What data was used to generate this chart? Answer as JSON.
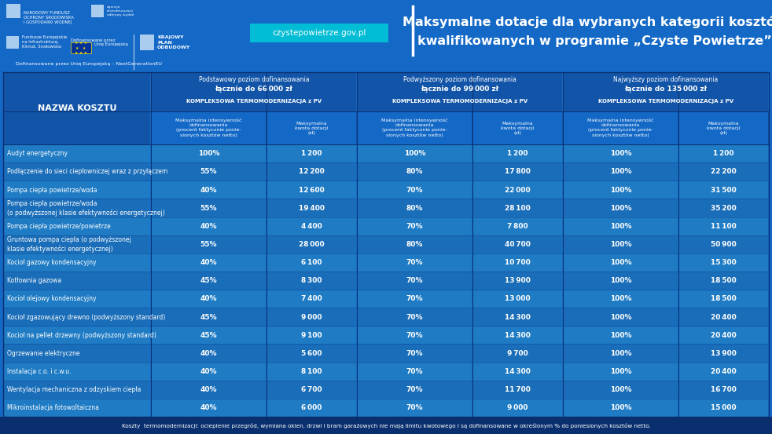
{
  "title_line1": "Maksymalne dotacje dla wybranych kategorii kosztów",
  "title_line2": "kwalifikowanych w programie „Czyste Powietrze”",
  "website": "czystepowietrze.gov.pl",
  "bg_color": "#1469C7",
  "dark_blue": "#0E3F8A",
  "medium_blue": "#1255A8",
  "light_blue": "#1E7BC4",
  "teal": "#00BCD4",
  "footer_bg": "#0A2F6E",
  "row_even": "#1E7BC4",
  "row_odd": "#1A6DB8",
  "header_bg": "#0E3F8A",
  "subheader_bg": "#1255A8",
  "section_bg": "#1469C7",
  "col_header1_line1": "Podstawowy poziom dofinansowania",
  "col_header1_bold": "łącznie do 66 000 zł",
  "col_header1_line3": "KOMPLEKSOWA TERMOMODERNIZACJA z PV",
  "col_header2_line1": "Podwyższony poziom dofinansowania",
  "col_header2_bold": "łącznie do 99 000 zł",
  "col_header2_line3": "KOMPLEKSOWA TERMOMODERNIZACJA z PV",
  "col_header3_line1": "Najwyższy poziom dofinansowania",
  "col_header3_bold": "łącznie do 135 000 zł",
  "col_header3_line3": "KOMPLEKSOWA TERMOMODERNIZACJA z PV",
  "footer_text": "Koszty  termomodernizacji: ocieplenie przegród, wymiana okien, drzwi i bram garażowych nie mają limitu kwotowego i są dofinansowane w określonym % do poniesionych kosztów netto.",
  "rows": [
    {
      "name": "Audyt energetyczny",
      "p1": "100%",
      "a1": "1 200",
      "p2": "100%",
      "a2": "1 200",
      "p3": "100%",
      "a3": "1 200"
    },
    {
      "name": "Podłączenie do sieci ciepłowniczej wraz z przyłączem",
      "p1": "55%",
      "a1": "12 200",
      "p2": "80%",
      "a2": "17 800",
      "p3": "100%",
      "a3": "22 200"
    },
    {
      "name": "Pompa ciepła powietrze/woda",
      "p1": "40%",
      "a1": "12 600",
      "p2": "70%",
      "a2": "22 000",
      "p3": "100%",
      "a3": "31 500"
    },
    {
      "name": "Pompa ciepła powietrze/woda\n(o podwyższonej klasie efektywności energetycznej)",
      "p1": "55%",
      "a1": "19 400",
      "p2": "80%",
      "a2": "28 100",
      "p3": "100%",
      "a3": "35 200"
    },
    {
      "name": "Pompa ciepła powietrze/powietrze",
      "p1": "40%",
      "a1": "4 400",
      "p2": "70%",
      "a2": "7 800",
      "p3": "100%",
      "a3": "11 100"
    },
    {
      "name": "Gruntowa pompa ciepła (o podwyższonej\nklasie efektywności energetycznej)",
      "p1": "55%",
      "a1": "28 000",
      "p2": "80%",
      "a2": "40 700",
      "p3": "100%",
      "a3": "50 900"
    },
    {
      "name": "Kocioł gazowy kondensacyjny",
      "p1": "40%",
      "a1": "6 100",
      "p2": "70%",
      "a2": "10 700",
      "p3": "100%",
      "a3": "15 300"
    },
    {
      "name": "Kotłownia gazowa",
      "p1": "45%",
      "a1": "8 300",
      "p2": "70%",
      "a2": "13 900",
      "p3": "100%",
      "a3": "18 500"
    },
    {
      "name": "Kocioł olejowy kondensacyjny",
      "p1": "40%",
      "a1": "7 400",
      "p2": "70%",
      "a2": "13 000",
      "p3": "100%",
      "a3": "18 500"
    },
    {
      "name": "Kocioł zgazowujący drewno (podwyższony standard)",
      "p1": "45%",
      "a1": "9 000",
      "p2": "70%",
      "a2": "14 300",
      "p3": "100%",
      "a3": "20 400"
    },
    {
      "name": "Kocioł na pellet drzewny (podwyższony standard)",
      "p1": "45%",
      "a1": "9 100",
      "p2": "70%",
      "a2": "14 300",
      "p3": "100%",
      "a3": "20 400"
    },
    {
      "name": "Ogrzewanie elektryczne",
      "p1": "40%",
      "a1": "5 600",
      "p2": "70%",
      "a2": "9 700",
      "p3": "100%",
      "a3": "13 900"
    },
    {
      "name": "Instalacja c.o. i c.w.u.",
      "p1": "40%",
      "a1": "8 100",
      "p2": "70%",
      "a2": "14 300",
      "p3": "100%",
      "a3": "20 400"
    },
    {
      "name": "Wentylacja mechaniczna z odzyskiem ciepła",
      "p1": "40%",
      "a1": "6 700",
      "p2": "70%",
      "a2": "11 700",
      "p3": "100%",
      "a3": "16 700"
    },
    {
      "name": "Mikroinstalacja fotowoltaiczna",
      "p1": "40%",
      "a1": "6 000",
      "p2": "70%",
      "a2": "9 000",
      "p3": "100%",
      "a3": "15 000"
    }
  ]
}
